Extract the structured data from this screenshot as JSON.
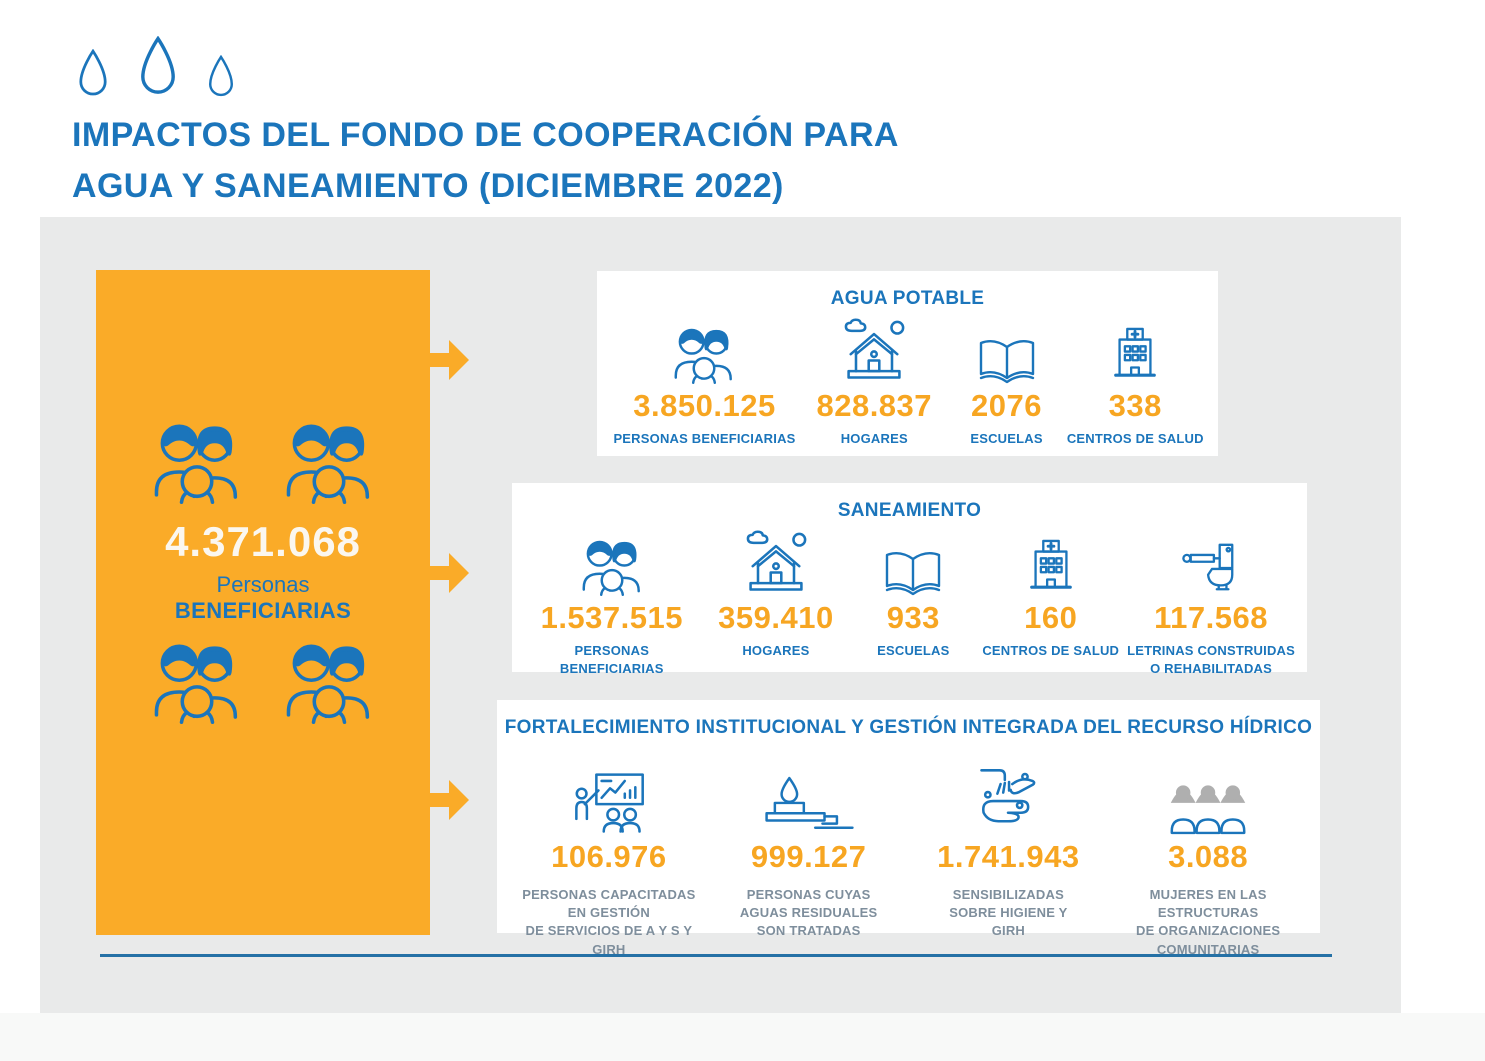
{
  "colors": {
    "primary_blue": "#1B75BB",
    "accent_orange": "#FAAB28",
    "number_orange": "#F7A622",
    "panel_gray": "#E9EAEA",
    "muted_label_gray": "#7E8E9C",
    "divider_blue": "#2571A6",
    "cream_white": "#FBF7EF",
    "icon_gray": "#AFAFAF"
  },
  "header": {
    "drop_icons": [
      "water-drop-icon",
      "water-drop-icon",
      "water-drop-icon"
    ],
    "title_line1": "IMPACTOS DEL FONDO DE COOPERACIÓN PARA",
    "title_line2": "AGUA Y SANEAMIENTO (DICIEMBRE 2022)"
  },
  "summary": {
    "icon": "family-icon",
    "icon_count": 4,
    "number": "4.371.068",
    "label_line1": "Personas",
    "label_line2": "BENEFICIARIAS",
    "arrow_icon": "flow-arrow-icon",
    "arrow_count": 3
  },
  "cards": [
    {
      "title": "AGUA POTABLE",
      "stats": [
        {
          "icon": "people-icon",
          "value": "3.850.125",
          "label": "PERSONAS BENEFICIARIAS"
        },
        {
          "icon": "house-icon",
          "value": "828.837",
          "label": "HOGARES"
        },
        {
          "icon": "book-icon",
          "value": "2076",
          "label": "ESCUELAS"
        },
        {
          "icon": "health-center-icon",
          "value": "338",
          "label": "CENTROS DE SALUD"
        }
      ]
    },
    {
      "title": "SANEAMIENTO",
      "stats": [
        {
          "icon": "people-icon",
          "value": "1.537.515",
          "label": "PERSONAS BENEFICIARIAS"
        },
        {
          "icon": "house-icon",
          "value": "359.410",
          "label": "HOGARES"
        },
        {
          "icon": "book-icon",
          "value": "933",
          "label": "ESCUELAS"
        },
        {
          "icon": "health-center-icon",
          "value": "160",
          "label": "CENTROS DE SALUD"
        },
        {
          "icon": "toilet-icon",
          "value": "117.568",
          "label": "LETRINAS CONSTRUIDAS\nO REHABILITADAS"
        }
      ]
    },
    {
      "title": "FORTALECIMIENTO INSTITUCIONAL Y GESTIÓN INTEGRADA DEL RECURSO HÍDRICO",
      "stats": [
        {
          "icon": "training-icon",
          "value": "106.976",
          "label": "PERSONAS CAPACITADAS\nEN GESTIÓN\nDE SERVICIOS DE A Y S Y GIRH"
        },
        {
          "icon": "water-treatment-icon",
          "value": "999.127",
          "label": "PERSONAS CUYAS\nAGUAS RESIDUALES\nSON TRATADAS"
        },
        {
          "icon": "handwash-icon",
          "value": "1.741.943",
          "label": "SENSIBILIZADAS\nSOBRE HIGIENE Y\nGIRH"
        },
        {
          "icon": "women-group-icon",
          "value": "3.088",
          "label": "MUJERES EN LAS ESTRUCTURAS\nDE ORGANIZACIONES\nCOMUNITARIAS"
        }
      ]
    }
  ]
}
